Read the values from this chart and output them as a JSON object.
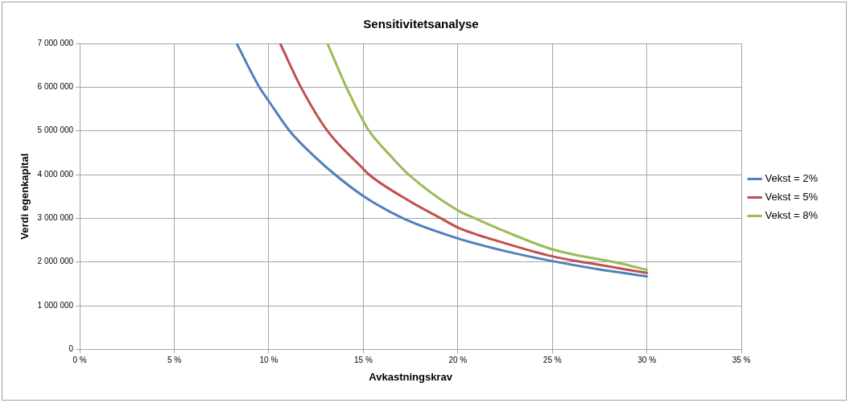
{
  "chart_data": {
    "type": "line",
    "title": "Sensitivitetsanalyse",
    "xlabel": "Avkastningskrav",
    "ylabel": "Verdi egenkapital",
    "xlim": [
      0,
      35
    ],
    "xticks": [
      {
        "value": 0,
        "label": "0 %"
      },
      {
        "value": 5,
        "label": "5 %"
      },
      {
        "value": 10,
        "label": "10 %"
      },
      {
        "value": 15,
        "label": "15 %"
      },
      {
        "value": 20,
        "label": "20 %"
      },
      {
        "value": 25,
        "label": "25 %"
      },
      {
        "value": 30,
        "label": "30 %"
      },
      {
        "value": 35,
        "label": "35 %"
      }
    ],
    "ylim": [
      0,
      7000000
    ],
    "yticks": [
      0,
      {
        "value": 1000000,
        "label": "1 000 000"
      },
      {
        "value": 2000000,
        "label": "2 000 000"
      },
      {
        "value": 3000000,
        "label": "3 000 000"
      },
      {
        "value": 4000000,
        "label": "4 000 000"
      },
      {
        "value": 5000000,
        "label": "5 000 000"
      },
      {
        "value": 6000000,
        "label": "6 000 000"
      },
      {
        "value": 7000000,
        "label": "7 000 000"
      }
    ],
    "grid": true,
    "legend": "right",
    "marker": "none",
    "line_style": "solid",
    "series": [
      {
        "name": "Vekst = 2%",
        "color": "#4f81bd",
        "x": [
          8.3,
          9.5,
          10,
          11.1,
          12.5,
          13.5,
          15,
          17.1,
          20,
          22.5,
          25,
          27.5,
          30
        ],
        "values": [
          7000000,
          6000000,
          5680000,
          5000000,
          4380000,
          4000000,
          3510000,
          3000000,
          2540000,
          2250000,
          2020000,
          1830000,
          1670000
        ]
      },
      {
        "name": "Vekst = 5%",
        "color": "#c0504d",
        "x": [
          10.6,
          11.7,
          13.1,
          15,
          15.3,
          17.5,
          19.1,
          20,
          22.5,
          25,
          27,
          30
        ],
        "values": [
          7000000,
          6000000,
          5000000,
          4130000,
          4000000,
          3380000,
          3000000,
          2790000,
          2430000,
          2130000,
          1970000,
          1750000
        ]
      },
      {
        "name": "Vekst = 8%",
        "color": "#9bbb59",
        "x": [
          13.1,
          14.1,
          15,
          15.3,
          16.5,
          17.4,
          20,
          20.9,
          22.5,
          25,
          28.8,
          30
        ],
        "values": [
          7000000,
          6000000,
          5220000,
          5000000,
          4400000,
          4000000,
          3180000,
          3000000,
          2700000,
          2290000,
          1950000,
          1820000
        ]
      }
    ]
  }
}
